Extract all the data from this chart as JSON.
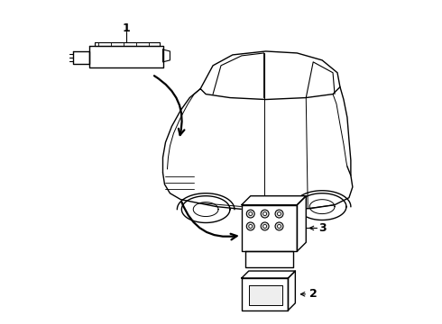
{
  "bg_color": "#ffffff",
  "line_color": "#000000",
  "fig_width": 4.9,
  "fig_height": 3.6,
  "dpi": 100,
  "label_1": "1",
  "label_2": "2",
  "label_3": "3"
}
